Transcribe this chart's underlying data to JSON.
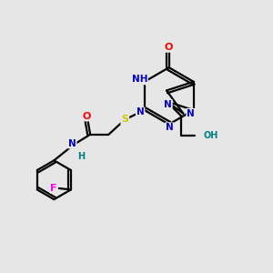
{
  "bg_color": "#e6e6e6",
  "atom_colors": {
    "N": "#0000cc",
    "O": "#ff0000",
    "S": "#cccc00",
    "F": "#ff00ff",
    "C": "#000000",
    "H": "#008080"
  },
  "bond_color": "#000000",
  "lw": 1.6
}
